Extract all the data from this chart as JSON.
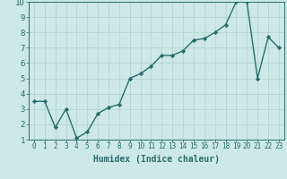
{
  "x": [
    0,
    1,
    2,
    3,
    4,
    5,
    6,
    7,
    8,
    9,
    10,
    11,
    12,
    13,
    14,
    15,
    16,
    17,
    18,
    19,
    20,
    21,
    22,
    23
  ],
  "y": [
    3.5,
    3.5,
    1.8,
    3.0,
    1.1,
    1.5,
    2.7,
    3.1,
    3.3,
    5.0,
    5.3,
    5.8,
    6.5,
    6.5,
    6.8,
    7.5,
    7.6,
    8.0,
    8.5,
    10.0,
    10.0,
    5.0,
    7.7,
    7.0
  ],
  "line_color": "#2e6b6b",
  "marker": "D",
  "markersize": 2.2,
  "linewidth": 1.0,
  "bg_color": "#cce8e8",
  "grid_color": "#b0d0d0",
  "xlabel": "Humidex (Indice chaleur)",
  "xlim": [
    -0.5,
    23.5
  ],
  "ylim": [
    1,
    10
  ],
  "yticks": [
    1,
    2,
    3,
    4,
    5,
    6,
    7,
    8,
    9,
    10
  ],
  "xticks": [
    0,
    1,
    2,
    3,
    4,
    5,
    6,
    7,
    8,
    9,
    10,
    11,
    12,
    13,
    14,
    15,
    16,
    17,
    18,
    19,
    20,
    21,
    22,
    23
  ],
  "tick_color": "#2e6b6b",
  "label_color": "#2e6b6b",
  "xlabel_fontsize": 7,
  "tick_fontsize": 5.5,
  "ylabel_fontsize": 6.5
}
